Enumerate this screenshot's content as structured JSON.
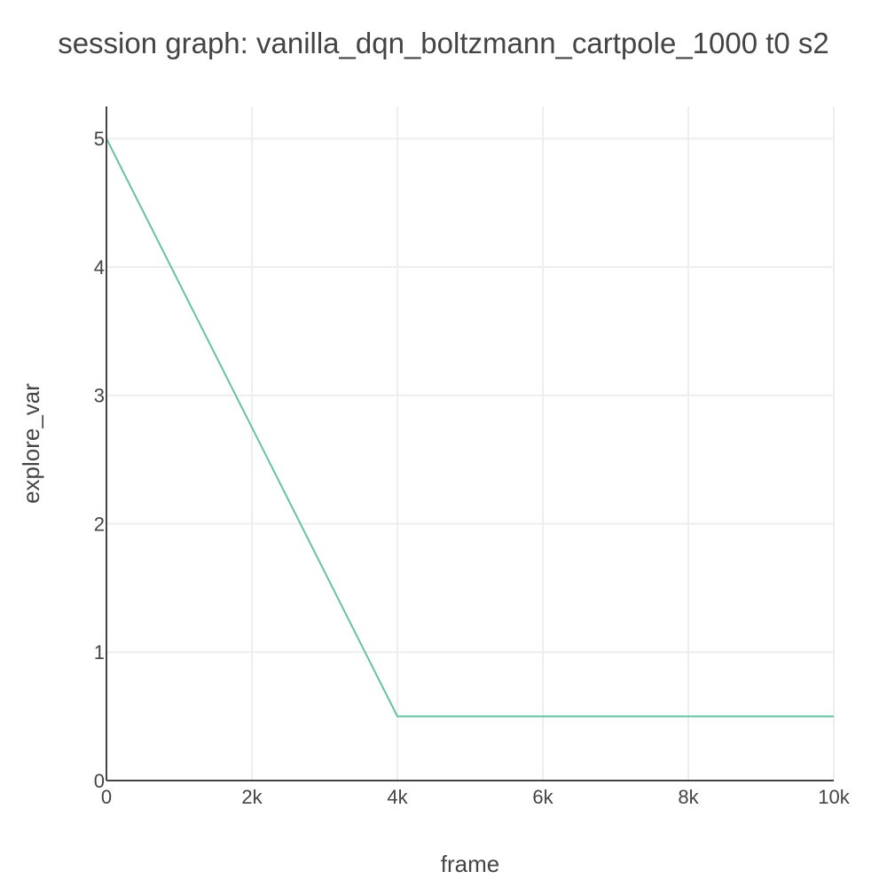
{
  "chart_data": {
    "type": "line",
    "title": "session graph: vanilla_dqn_boltzmann_cartpole_1000 t0 s2",
    "xlabel": "frame",
    "ylabel": "explore_var",
    "xlim": [
      0,
      10000
    ],
    "ylim": [
      0,
      5.25
    ],
    "x_ticks": [
      {
        "value": 0,
        "label": "0"
      },
      {
        "value": 2000,
        "label": "2k"
      },
      {
        "value": 4000,
        "label": "4k"
      },
      {
        "value": 6000,
        "label": "6k"
      },
      {
        "value": 8000,
        "label": "8k"
      },
      {
        "value": 10000,
        "label": "10k"
      }
    ],
    "y_ticks": [
      {
        "value": 0,
        "label": "0"
      },
      {
        "value": 1,
        "label": "1"
      },
      {
        "value": 2,
        "label": "2"
      },
      {
        "value": 3,
        "label": "3"
      },
      {
        "value": 4,
        "label": "4"
      },
      {
        "value": 5,
        "label": "5"
      }
    ],
    "grid": true,
    "legend": "none",
    "series": [
      {
        "color": "#66c2a5",
        "x": [
          0,
          4000,
          10000
        ],
        "y": [
          5,
          0.5,
          0.5
        ]
      }
    ]
  }
}
